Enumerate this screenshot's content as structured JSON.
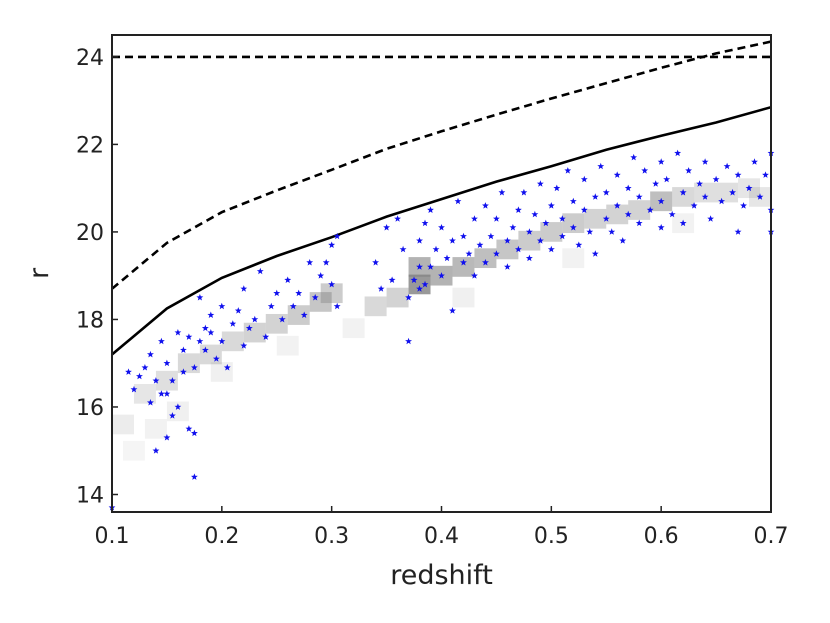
{
  "chart_data": {
    "type": "scatter",
    "title": "",
    "xlabel": "redshift",
    "ylabel": "r",
    "xlim": [
      0.1,
      0.7
    ],
    "ylim": [
      13.6,
      24.5
    ],
    "xticks": [
      0.1,
      0.2,
      0.3,
      0.4,
      0.5,
      0.6,
      0.7
    ],
    "xtick_labels": [
      "0.1",
      "0.2",
      "0.3",
      "0.4",
      "0.5",
      "0.6",
      "0.7"
    ],
    "yticks": [
      14,
      16,
      18,
      20,
      22,
      24
    ],
    "ytick_labels": [
      "14",
      "16",
      "18",
      "20",
      "22",
      "24"
    ],
    "grid": false,
    "legend": "none",
    "colors": {
      "points": "#1010ee",
      "lines": "#000000",
      "density": "#808080"
    },
    "curves": [
      {
        "style": "solid",
        "x": [
          0.1,
          0.15,
          0.2,
          0.25,
          0.3,
          0.35,
          0.4,
          0.45,
          0.5,
          0.55,
          0.6,
          0.65,
          0.7
        ],
        "y": [
          17.2,
          18.25,
          18.95,
          19.45,
          19.88,
          20.35,
          20.75,
          21.15,
          21.5,
          21.88,
          22.2,
          22.5,
          22.85
        ]
      },
      {
        "style": "dashed",
        "x": [
          0.1,
          0.15,
          0.2,
          0.25,
          0.3,
          0.35,
          0.4,
          0.45,
          0.5,
          0.55,
          0.6,
          0.65,
          0.7
        ],
        "y": [
          18.7,
          19.75,
          20.45,
          20.95,
          21.42,
          21.9,
          22.3,
          22.68,
          23.05,
          23.4,
          23.75,
          24.08,
          24.35
        ]
      },
      {
        "style": "dashed",
        "x": [
          0.1,
          0.7
        ],
        "y": [
          24.0,
          24.0
        ]
      }
    ],
    "density_bins": [
      {
        "x": 0.11,
        "y": 15.6,
        "v": 0.15
      },
      {
        "x": 0.13,
        "y": 16.3,
        "v": 0.2
      },
      {
        "x": 0.15,
        "y": 16.6,
        "v": 0.25
      },
      {
        "x": 0.17,
        "y": 17.0,
        "v": 0.3
      },
      {
        "x": 0.19,
        "y": 17.2,
        "v": 0.3
      },
      {
        "x": 0.21,
        "y": 17.5,
        "v": 0.3
      },
      {
        "x": 0.23,
        "y": 17.7,
        "v": 0.35
      },
      {
        "x": 0.25,
        "y": 17.9,
        "v": 0.35
      },
      {
        "x": 0.27,
        "y": 18.1,
        "v": 0.4
      },
      {
        "x": 0.29,
        "y": 18.4,
        "v": 0.45
      },
      {
        "x": 0.3,
        "y": 18.6,
        "v": 0.4
      },
      {
        "x": 0.34,
        "y": 18.3,
        "v": 0.3
      },
      {
        "x": 0.36,
        "y": 18.5,
        "v": 0.35
      },
      {
        "x": 0.38,
        "y": 18.8,
        "v": 0.8
      },
      {
        "x": 0.38,
        "y": 19.2,
        "v": 0.6
      },
      {
        "x": 0.4,
        "y": 19.0,
        "v": 0.6
      },
      {
        "x": 0.42,
        "y": 19.2,
        "v": 0.55
      },
      {
        "x": 0.44,
        "y": 19.4,
        "v": 0.5
      },
      {
        "x": 0.46,
        "y": 19.6,
        "v": 0.45
      },
      {
        "x": 0.48,
        "y": 19.8,
        "v": 0.4
      },
      {
        "x": 0.5,
        "y": 20.0,
        "v": 0.4
      },
      {
        "x": 0.52,
        "y": 20.2,
        "v": 0.4
      },
      {
        "x": 0.54,
        "y": 20.3,
        "v": 0.35
      },
      {
        "x": 0.56,
        "y": 20.4,
        "v": 0.35
      },
      {
        "x": 0.58,
        "y": 20.5,
        "v": 0.35
      },
      {
        "x": 0.6,
        "y": 20.7,
        "v": 0.5
      },
      {
        "x": 0.62,
        "y": 20.8,
        "v": 0.3
      },
      {
        "x": 0.64,
        "y": 20.9,
        "v": 0.25
      },
      {
        "x": 0.66,
        "y": 20.9,
        "v": 0.25
      },
      {
        "x": 0.68,
        "y": 21.0,
        "v": 0.2
      },
      {
        "x": 0.69,
        "y": 20.8,
        "v": 0.2
      },
      {
        "x": 0.12,
        "y": 15.0,
        "v": 0.08
      },
      {
        "x": 0.14,
        "y": 15.5,
        "v": 0.1
      },
      {
        "x": 0.16,
        "y": 15.9,
        "v": 0.12
      },
      {
        "x": 0.2,
        "y": 16.8,
        "v": 0.12
      },
      {
        "x": 0.26,
        "y": 17.4,
        "v": 0.1
      },
      {
        "x": 0.32,
        "y": 17.8,
        "v": 0.1
      },
      {
        "x": 0.42,
        "y": 18.5,
        "v": 0.12
      },
      {
        "x": 0.52,
        "y": 19.4,
        "v": 0.1
      },
      {
        "x": 0.62,
        "y": 20.2,
        "v": 0.1
      }
    ],
    "points": [
      [
        0.1,
        13.7
      ],
      [
        0.115,
        16.8
      ],
      [
        0.12,
        16.4
      ],
      [
        0.125,
        16.7
      ],
      [
        0.13,
        16.9
      ],
      [
        0.135,
        16.1
      ],
      [
        0.135,
        17.2
      ],
      [
        0.14,
        15.0
      ],
      [
        0.14,
        16.6
      ],
      [
        0.145,
        16.3
      ],
      [
        0.145,
        17.5
      ],
      [
        0.15,
        15.3
      ],
      [
        0.15,
        16.3
      ],
      [
        0.15,
        17.0
      ],
      [
        0.155,
        15.8
      ],
      [
        0.155,
        16.6
      ],
      [
        0.16,
        16.0
      ],
      [
        0.16,
        17.7
      ],
      [
        0.165,
        16.8
      ],
      [
        0.165,
        17.3
      ],
      [
        0.17,
        17.6
      ],
      [
        0.17,
        15.5
      ],
      [
        0.175,
        14.4
      ],
      [
        0.175,
        16.9
      ],
      [
        0.175,
        15.4
      ],
      [
        0.18,
        17.5
      ],
      [
        0.18,
        18.5
      ],
      [
        0.185,
        17.3
      ],
      [
        0.185,
        17.8
      ],
      [
        0.19,
        17.7
      ],
      [
        0.19,
        18.1
      ],
      [
        0.195,
        17.1
      ],
      [
        0.2,
        17.5
      ],
      [
        0.2,
        18.3
      ],
      [
        0.205,
        16.9
      ],
      [
        0.21,
        17.9
      ],
      [
        0.215,
        18.2
      ],
      [
        0.22,
        17.4
      ],
      [
        0.22,
        18.7
      ],
      [
        0.225,
        17.8
      ],
      [
        0.23,
        18.0
      ],
      [
        0.235,
        19.1
      ],
      [
        0.24,
        17.6
      ],
      [
        0.245,
        18.3
      ],
      [
        0.25,
        18.6
      ],
      [
        0.255,
        18.0
      ],
      [
        0.26,
        18.9
      ],
      [
        0.265,
        18.3
      ],
      [
        0.27,
        18.6
      ],
      [
        0.275,
        18.1
      ],
      [
        0.28,
        19.3
      ],
      [
        0.285,
        18.5
      ],
      [
        0.29,
        19.0
      ],
      [
        0.295,
        19.3
      ],
      [
        0.3,
        18.8
      ],
      [
        0.3,
        19.7
      ],
      [
        0.305,
        19.9
      ],
      [
        0.305,
        18.3
      ],
      [
        0.34,
        19.3
      ],
      [
        0.345,
        18.7
      ],
      [
        0.35,
        20.1
      ],
      [
        0.355,
        18.9
      ],
      [
        0.36,
        20.3
      ],
      [
        0.365,
        19.6
      ],
      [
        0.37,
        17.5
      ],
      [
        0.37,
        18.5
      ],
      [
        0.375,
        18.9
      ],
      [
        0.38,
        19.2
      ],
      [
        0.38,
        19.8
      ],
      [
        0.38,
        18.7
      ],
      [
        0.385,
        20.2
      ],
      [
        0.385,
        18.8
      ],
      [
        0.39,
        19.2
      ],
      [
        0.39,
        20.5
      ],
      [
        0.395,
        19.6
      ],
      [
        0.4,
        19.0
      ],
      [
        0.4,
        20.1
      ],
      [
        0.405,
        19.4
      ],
      [
        0.41,
        19.8
      ],
      [
        0.41,
        18.2
      ],
      [
        0.415,
        20.7
      ],
      [
        0.42,
        19.3
      ],
      [
        0.42,
        19.9
      ],
      [
        0.425,
        19.5
      ],
      [
        0.43,
        20.3
      ],
      [
        0.43,
        19.0
      ],
      [
        0.435,
        19.7
      ],
      [
        0.44,
        20.6
      ],
      [
        0.44,
        19.3
      ],
      [
        0.445,
        19.9
      ],
      [
        0.45,
        19.5
      ],
      [
        0.45,
        20.3
      ],
      [
        0.455,
        20.9
      ],
      [
        0.46,
        19.8
      ],
      [
        0.46,
        19.2
      ],
      [
        0.465,
        20.1
      ],
      [
        0.47,
        20.5
      ],
      [
        0.47,
        19.6
      ],
      [
        0.475,
        20.9
      ],
      [
        0.48,
        20.0
      ],
      [
        0.48,
        19.4
      ],
      [
        0.485,
        20.4
      ],
      [
        0.49,
        19.8
      ],
      [
        0.49,
        21.1
      ],
      [
        0.495,
        20.2
      ],
      [
        0.5,
        19.6
      ],
      [
        0.5,
        20.6
      ],
      [
        0.505,
        21.0
      ],
      [
        0.51,
        20.3
      ],
      [
        0.51,
        19.9
      ],
      [
        0.515,
        21.4
      ],
      [
        0.52,
        20.1
      ],
      [
        0.52,
        20.7
      ],
      [
        0.525,
        19.7
      ],
      [
        0.53,
        20.5
      ],
      [
        0.53,
        21.2
      ],
      [
        0.535,
        20.0
      ],
      [
        0.54,
        20.8
      ],
      [
        0.54,
        19.5
      ],
      [
        0.545,
        21.5
      ],
      [
        0.55,
        20.3
      ],
      [
        0.55,
        20.9
      ],
      [
        0.555,
        20.0
      ],
      [
        0.56,
        21.3
      ],
      [
        0.56,
        20.6
      ],
      [
        0.565,
        19.8
      ],
      [
        0.57,
        21.0
      ],
      [
        0.57,
        20.4
      ],
      [
        0.575,
        21.7
      ],
      [
        0.58,
        20.2
      ],
      [
        0.58,
        20.8
      ],
      [
        0.585,
        21.4
      ],
      [
        0.59,
        20.5
      ],
      [
        0.595,
        21.1
      ],
      [
        0.6,
        20.7
      ],
      [
        0.6,
        21.6
      ],
      [
        0.6,
        20.1
      ],
      [
        0.605,
        21.2
      ],
      [
        0.61,
        20.4
      ],
      [
        0.615,
        21.8
      ],
      [
        0.62,
        20.9
      ],
      [
        0.62,
        20.2
      ],
      [
        0.625,
        21.4
      ],
      [
        0.63,
        20.6
      ],
      [
        0.635,
        21.1
      ],
      [
        0.64,
        20.8
      ],
      [
        0.64,
        21.6
      ],
      [
        0.645,
        20.3
      ],
      [
        0.65,
        21.2
      ],
      [
        0.655,
        20.7
      ],
      [
        0.66,
        21.5
      ],
      [
        0.665,
        20.9
      ],
      [
        0.67,
        20.0
      ],
      [
        0.67,
        21.3
      ],
      [
        0.675,
        20.6
      ],
      [
        0.68,
        21.0
      ],
      [
        0.685,
        21.6
      ],
      [
        0.69,
        20.8
      ],
      [
        0.695,
        21.3
      ],
      [
        0.7,
        20.5
      ],
      [
        0.7,
        21.8
      ],
      [
        0.7,
        20.0
      ]
    ]
  }
}
